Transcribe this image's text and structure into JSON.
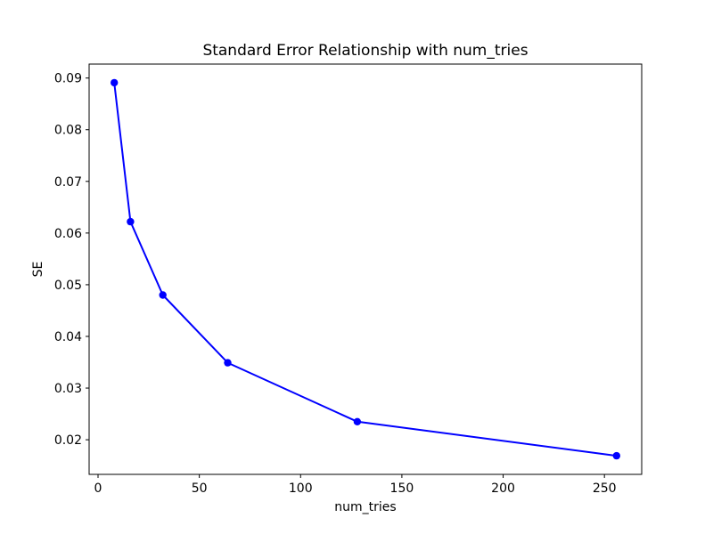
{
  "window": {
    "background": "#ffffff"
  },
  "chart_data": {
    "type": "line",
    "title": "Standard Error Relationship with num_tries",
    "xlabel": "num_tries",
    "ylabel": "SE",
    "series": [
      {
        "name": "SE",
        "x": [
          8,
          16,
          32,
          64,
          128,
          256
        ],
        "y": [
          0.0891,
          0.0622,
          0.048,
          0.0349,
          0.0235,
          0.0169
        ],
        "color": "#0000ff",
        "marker": "circle",
        "line_style": "solid"
      }
    ],
    "xlim": [
      -4.4,
      268.4
    ],
    "ylim": [
      0.0133,
      0.0927
    ],
    "xticks": [
      0,
      50,
      100,
      150,
      200,
      250
    ],
    "yticks": [
      0.02,
      0.03,
      0.04,
      0.05,
      0.06,
      0.07,
      0.08,
      0.09
    ],
    "xticklabels": [
      "0",
      "50",
      "100",
      "150",
      "200",
      "250"
    ],
    "yticklabels": [
      "0.02",
      "0.03",
      "0.04",
      "0.05",
      "0.06",
      "0.07",
      "0.08",
      "0.09"
    ],
    "grid": false,
    "legend": null,
    "axes_color": "#000000",
    "text_color": "#000000"
  }
}
